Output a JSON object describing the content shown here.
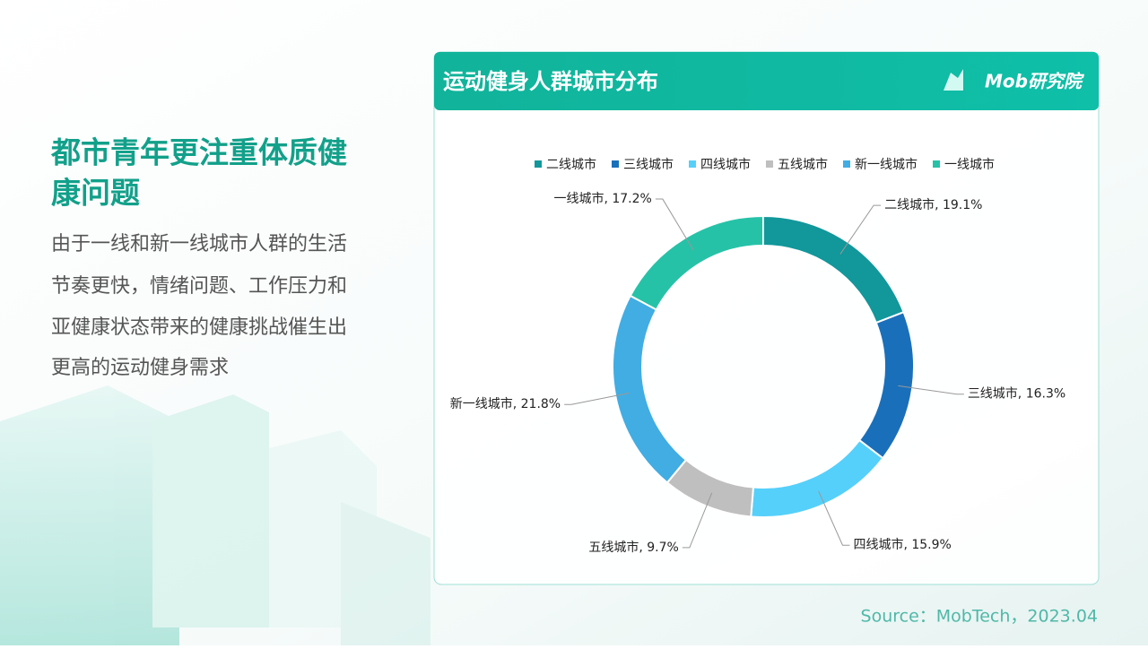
{
  "slide": {
    "heading": [
      "都市青年更注重体质健",
      "康问题"
    ],
    "body": [
      "由于一线和新一线城市人群的生活",
      "节奏更快，情绪问题、工作压力和",
      "亚健康状态带来的健康挑战催生出",
      "更高的运动健身需求"
    ],
    "brand": "Mob研究院",
    "source": "Source：MobTech，2023.04"
  },
  "chart_data": {
    "type": "donut",
    "title": "运动健身人群城市分布",
    "categories": [
      "二线城市",
      "三线城市",
      "四线城市",
      "五线城市",
      "新一线城市",
      "一线城市"
    ],
    "values": [
      19.1,
      16.3,
      15.9,
      9.7,
      21.8,
      17.2
    ],
    "value_labels": [
      "二线城市, 19.1%",
      "三线城市, 16.3%",
      "四线城市, 15.9%",
      "五线城市, 9.7%",
      "新一线城市, 21.8%",
      "一线城市, 17.2%"
    ],
    "colors": [
      "#12979b",
      "#1a6fba",
      "#55d0fa",
      "#bfbfbf",
      "#41ade3",
      "#26c2a8"
    ],
    "legend": "top"
  }
}
